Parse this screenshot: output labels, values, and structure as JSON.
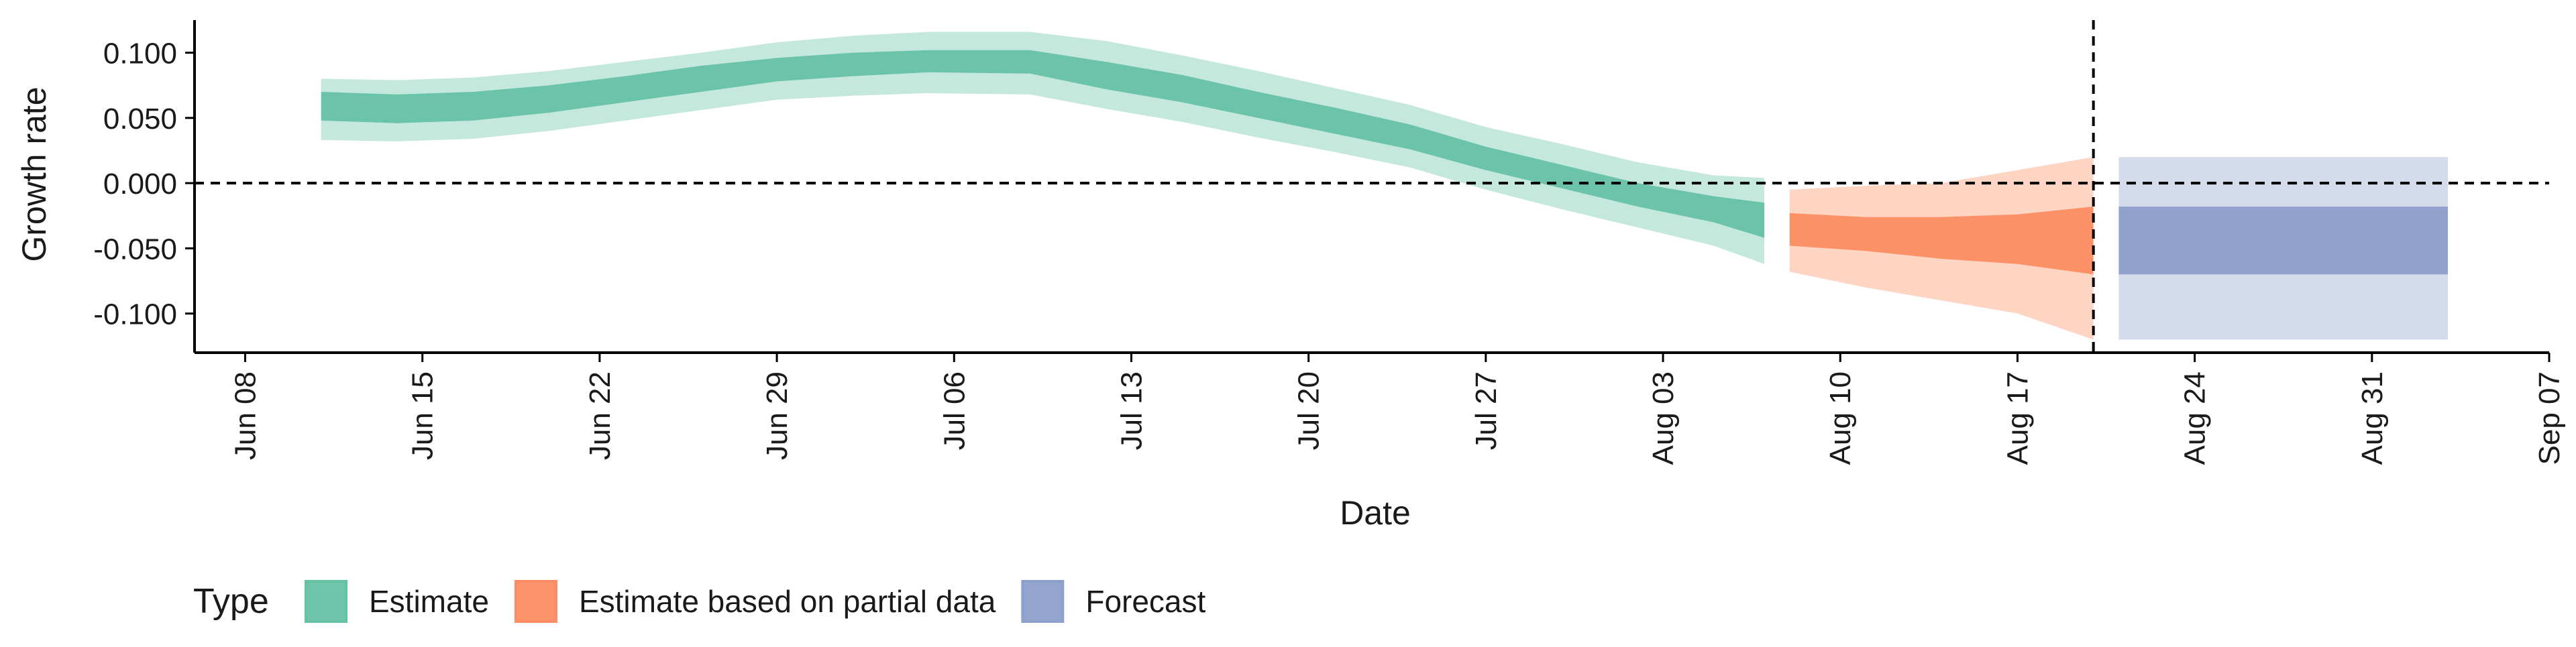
{
  "chart_data": {
    "type": "area",
    "xlabel": "Date",
    "ylabel": "Growth rate",
    "x_range": [
      "2020-06-06",
      "2020-09-07"
    ],
    "ylim": [
      -0.13,
      0.125
    ],
    "grid": false,
    "legend_position": "bottom",
    "legend_title": "Type",
    "x_ticks": [
      {
        "date": "2020-06-08",
        "label": "Jun 08"
      },
      {
        "date": "2020-06-15",
        "label": "Jun 15"
      },
      {
        "date": "2020-06-22",
        "label": "Jun 22"
      },
      {
        "date": "2020-06-29",
        "label": "Jun 29"
      },
      {
        "date": "2020-07-06",
        "label": "Jul 06"
      },
      {
        "date": "2020-07-13",
        "label": "Jul 13"
      },
      {
        "date": "2020-07-20",
        "label": "Jul 20"
      },
      {
        "date": "2020-07-27",
        "label": "Jul 27"
      },
      {
        "date": "2020-08-03",
        "label": "Aug 03"
      },
      {
        "date": "2020-08-10",
        "label": "Aug 10"
      },
      {
        "date": "2020-08-17",
        "label": "Aug 17"
      },
      {
        "date": "2020-08-24",
        "label": "Aug 24"
      },
      {
        "date": "2020-08-31",
        "label": "Aug 31"
      },
      {
        "date": "2020-09-07",
        "label": "Sep 07"
      }
    ],
    "y_ticks": [
      {
        "value": 0.1,
        "label": "0.100"
      },
      {
        "value": 0.05,
        "label": "0.050"
      },
      {
        "value": 0.0,
        "label": "0.000"
      },
      {
        "value": -0.05,
        "label": "-0.050"
      },
      {
        "value": -0.1,
        "label": "-0.100"
      }
    ],
    "hlines": [
      {
        "y": 0.0,
        "style": "dashed"
      }
    ],
    "vlines": [
      {
        "x": "2020-08-20",
        "style": "dashed"
      }
    ],
    "series": [
      {
        "name": "Estimate",
        "color": "#66c2a5",
        "points": [
          {
            "x": "2020-06-11",
            "inner": [
              0.048,
              0.07
            ],
            "outer": [
              0.033,
              0.08
            ]
          },
          {
            "x": "2020-06-14",
            "inner": [
              0.046,
              0.068
            ],
            "outer": [
              0.032,
              0.079
            ]
          },
          {
            "x": "2020-06-17",
            "inner": [
              0.048,
              0.07
            ],
            "outer": [
              0.034,
              0.081
            ]
          },
          {
            "x": "2020-06-20",
            "inner": [
              0.054,
              0.075
            ],
            "outer": [
              0.04,
              0.086
            ]
          },
          {
            "x": "2020-06-23",
            "inner": [
              0.062,
              0.082
            ],
            "outer": [
              0.048,
              0.093
            ]
          },
          {
            "x": "2020-06-26",
            "inner": [
              0.07,
              0.09
            ],
            "outer": [
              0.056,
              0.1
            ]
          },
          {
            "x": "2020-06-29",
            "inner": [
              0.078,
              0.096
            ],
            "outer": [
              0.064,
              0.108
            ]
          },
          {
            "x": "2020-07-02",
            "inner": [
              0.082,
              0.1
            ],
            "outer": [
              0.067,
              0.113
            ]
          },
          {
            "x": "2020-07-05",
            "inner": [
              0.085,
              0.102
            ],
            "outer": [
              0.069,
              0.116
            ]
          },
          {
            "x": "2020-07-09",
            "inner": [
              0.084,
              0.102
            ],
            "outer": [
              0.068,
              0.116
            ]
          },
          {
            "x": "2020-07-12",
            "inner": [
              0.072,
              0.093
            ],
            "outer": [
              0.057,
              0.109
            ]
          },
          {
            "x": "2020-07-15",
            "inner": [
              0.062,
              0.083
            ],
            "outer": [
              0.047,
              0.098
            ]
          },
          {
            "x": "2020-07-18",
            "inner": [
              0.05,
              0.07
            ],
            "outer": [
              0.035,
              0.086
            ]
          },
          {
            "x": "2020-07-21",
            "inner": [
              0.038,
              0.058
            ],
            "outer": [
              0.024,
              0.073
            ]
          },
          {
            "x": "2020-07-24",
            "inner": [
              0.026,
              0.045
            ],
            "outer": [
              0.012,
              0.06
            ]
          },
          {
            "x": "2020-07-27",
            "inner": [
              0.01,
              0.028
            ],
            "outer": [
              -0.005,
              0.043
            ]
          },
          {
            "x": "2020-07-30",
            "inner": [
              -0.004,
              0.014
            ],
            "outer": [
              -0.02,
              0.03
            ]
          },
          {
            "x": "2020-08-02",
            "inner": [
              -0.018,
              0.0
            ],
            "outer": [
              -0.034,
              0.016
            ]
          },
          {
            "x": "2020-08-05",
            "inner": [
              -0.03,
              -0.01
            ],
            "outer": [
              -0.048,
              0.006
            ]
          },
          {
            "x": "2020-08-07",
            "inner": [
              -0.042,
              -0.015
            ],
            "outer": [
              -0.062,
              0.004
            ]
          }
        ]
      },
      {
        "name": "Estimate based on partial data",
        "color": "#fc8d62",
        "points": [
          {
            "x": "2020-08-08",
            "inner": [
              -0.048,
              -0.023
            ],
            "outer": [
              -0.068,
              -0.005
            ]
          },
          {
            "x": "2020-08-11",
            "inner": [
              -0.052,
              -0.026
            ],
            "outer": [
              -0.08,
              -0.002
            ]
          },
          {
            "x": "2020-08-14",
            "inner": [
              -0.058,
              -0.026
            ],
            "outer": [
              -0.09,
              0.0
            ]
          },
          {
            "x": "2020-08-17",
            "inner": [
              -0.062,
              -0.024
            ],
            "outer": [
              -0.1,
              0.01
            ]
          },
          {
            "x": "2020-08-20",
            "inner": [
              -0.07,
              -0.018
            ],
            "outer": [
              -0.12,
              0.02
            ]
          }
        ]
      },
      {
        "name": "Forecast",
        "color": "#8da0cb",
        "points": [
          {
            "x": "2020-08-21",
            "inner": [
              -0.07,
              -0.018
            ],
            "outer": [
              -0.12,
              0.02
            ]
          },
          {
            "x": "2020-09-03",
            "inner": [
              -0.07,
              -0.018
            ],
            "outer": [
              -0.12,
              0.02
            ]
          }
        ]
      }
    ]
  }
}
